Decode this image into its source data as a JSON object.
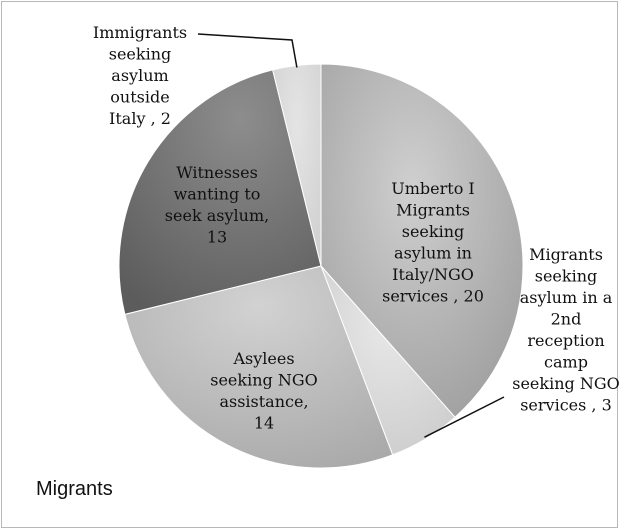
{
  "chart_data": {
    "type": "pie",
    "title": "Migrants",
    "slices": [
      {
        "label": "Umberto I Migrants seeking asylum in Italy/NGO services , 20",
        "value": 20,
        "color": "#b9b9b9"
      },
      {
        "label": "Migrants seeking asylum in a 2nd reception camp seeking NGO services , 3",
        "value": 3,
        "color": "#dedede"
      },
      {
        "label": "Asylees seeking NGO assistance, 14",
        "value": 14,
        "color": "#c3c3c3"
      },
      {
        "label": "Witnesses wanting to seek asylum, 13",
        "value": 13,
        "color": "#7e7e7e"
      },
      {
        "label": "Immigrants seeking asylum outside Italy , 2",
        "value": 2,
        "color": "#d9d9d9"
      }
    ],
    "labels_lines": [
      [
        "Umberto I",
        "Migrants",
        "seeking",
        "asylum in",
        "Italy/NGO",
        "services , 20"
      ],
      [
        "Migrants",
        "seeking",
        "asylum in a",
        "2nd",
        "reception",
        "camp",
        "seeking NGO",
        "services , 3"
      ],
      [
        "Asylees",
        "seeking NGO",
        "assistance,",
        "14"
      ],
      [
        "Witnesses",
        "wanting to",
        "seek asylum,",
        "13"
      ],
      [
        "Immigrants",
        "seeking",
        "asylum",
        "outside",
        "Italy , 2"
      ]
    ]
  }
}
